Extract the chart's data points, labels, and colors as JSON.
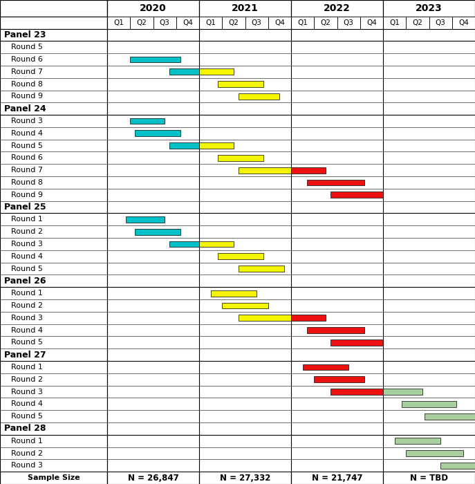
{
  "years": [
    "2020",
    "2021",
    "2022",
    "2023"
  ],
  "quarters": [
    "Q1",
    "Q2",
    "Q3",
    "Q4"
  ],
  "colors": {
    "cyan": "#00C0C8",
    "yellow": "#F5F500",
    "red": "#EE1111",
    "green": "#AACF9E"
  },
  "panel_specs": [
    {
      "name": "Panel 23",
      "rounds": [
        "Round 5",
        "Round 6",
        "Round 7",
        "Round 8",
        "Round 9"
      ],
      "bars": [
        [],
        [
          {
            "s": 1.0,
            "e": 3.2,
            "c": "cyan"
          }
        ],
        [
          {
            "s": 2.7,
            "e": 4.0,
            "c": "cyan"
          },
          {
            "s": 4.0,
            "e": 5.5,
            "c": "yellow"
          }
        ],
        [
          {
            "s": 4.8,
            "e": 6.8,
            "c": "yellow"
          }
        ],
        [
          {
            "s": 5.7,
            "e": 7.5,
            "c": "yellow"
          }
        ]
      ]
    },
    {
      "name": "Panel 24",
      "rounds": [
        "Round 3",
        "Round 4",
        "Round 5",
        "Round 6",
        "Round 7",
        "Round 8",
        "Round 9"
      ],
      "bars": [
        [
          {
            "s": 1.0,
            "e": 2.5,
            "c": "cyan"
          }
        ],
        [
          {
            "s": 1.2,
            "e": 3.2,
            "c": "cyan"
          }
        ],
        [
          {
            "s": 2.7,
            "e": 4.0,
            "c": "cyan"
          },
          {
            "s": 4.0,
            "e": 5.5,
            "c": "yellow"
          }
        ],
        [
          {
            "s": 4.8,
            "e": 6.8,
            "c": "yellow"
          }
        ],
        [
          {
            "s": 5.7,
            "e": 8.0,
            "c": "yellow"
          },
          {
            "s": 8.0,
            "e": 9.5,
            "c": "red"
          }
        ],
        [
          {
            "s": 8.7,
            "e": 11.2,
            "c": "red"
          }
        ],
        [
          {
            "s": 9.7,
            "e": 12.0,
            "c": "red"
          }
        ]
      ]
    },
    {
      "name": "Panel 25",
      "rounds": [
        "Round 1",
        "Round 2",
        "Round 3",
        "Round 4",
        "Round 5"
      ],
      "bars": [
        [
          {
            "s": 0.8,
            "e": 2.5,
            "c": "cyan"
          }
        ],
        [
          {
            "s": 1.2,
            "e": 3.2,
            "c": "cyan"
          }
        ],
        [
          {
            "s": 2.7,
            "e": 4.0,
            "c": "cyan"
          },
          {
            "s": 4.0,
            "e": 5.5,
            "c": "yellow"
          }
        ],
        [
          {
            "s": 4.8,
            "e": 6.8,
            "c": "yellow"
          }
        ],
        [
          {
            "s": 5.7,
            "e": 7.7,
            "c": "yellow"
          }
        ]
      ]
    },
    {
      "name": "Panel 26",
      "rounds": [
        "Round 1",
        "Round 2",
        "Round 3",
        "Round 4",
        "Round 5"
      ],
      "bars": [
        [
          {
            "s": 4.5,
            "e": 6.5,
            "c": "yellow"
          }
        ],
        [
          {
            "s": 5.0,
            "e": 7.0,
            "c": "yellow"
          }
        ],
        [
          {
            "s": 5.7,
            "e": 8.0,
            "c": "yellow"
          },
          {
            "s": 8.0,
            "e": 9.5,
            "c": "red"
          }
        ],
        [
          {
            "s": 8.7,
            "e": 11.2,
            "c": "red"
          }
        ],
        [
          {
            "s": 9.7,
            "e": 12.0,
            "c": "red"
          }
        ]
      ]
    },
    {
      "name": "Panel 27",
      "rounds": [
        "Round 1",
        "Round 2",
        "Round 3",
        "Round 4",
        "Round 5"
      ],
      "bars": [
        [
          {
            "s": 8.5,
            "e": 10.5,
            "c": "red"
          }
        ],
        [
          {
            "s": 9.0,
            "e": 11.2,
            "c": "red"
          }
        ],
        [
          {
            "s": 9.7,
            "e": 12.0,
            "c": "red"
          },
          {
            "s": 12.0,
            "e": 13.7,
            "c": "green"
          }
        ],
        [
          {
            "s": 12.8,
            "e": 15.2,
            "c": "green"
          }
        ],
        [
          {
            "s": 13.8,
            "e": 16.0,
            "c": "green"
          }
        ]
      ]
    },
    {
      "name": "Panel 28",
      "rounds": [
        "Round 1",
        "Round 2",
        "Round 3"
      ],
      "bars": [
        [
          {
            "s": 12.5,
            "e": 14.5,
            "c": "green"
          }
        ],
        [
          {
            "s": 13.0,
            "e": 15.5,
            "c": "green"
          }
        ],
        [
          {
            "s": 14.5,
            "e": 16.0,
            "c": "green"
          }
        ]
      ]
    }
  ],
  "sample_sizes": [
    "N = 26,847",
    "N = 27,332",
    "N = 21,747",
    "N = TBD"
  ],
  "fig_width": 6.87,
  "fig_height": 7.0,
  "dpi": 100
}
